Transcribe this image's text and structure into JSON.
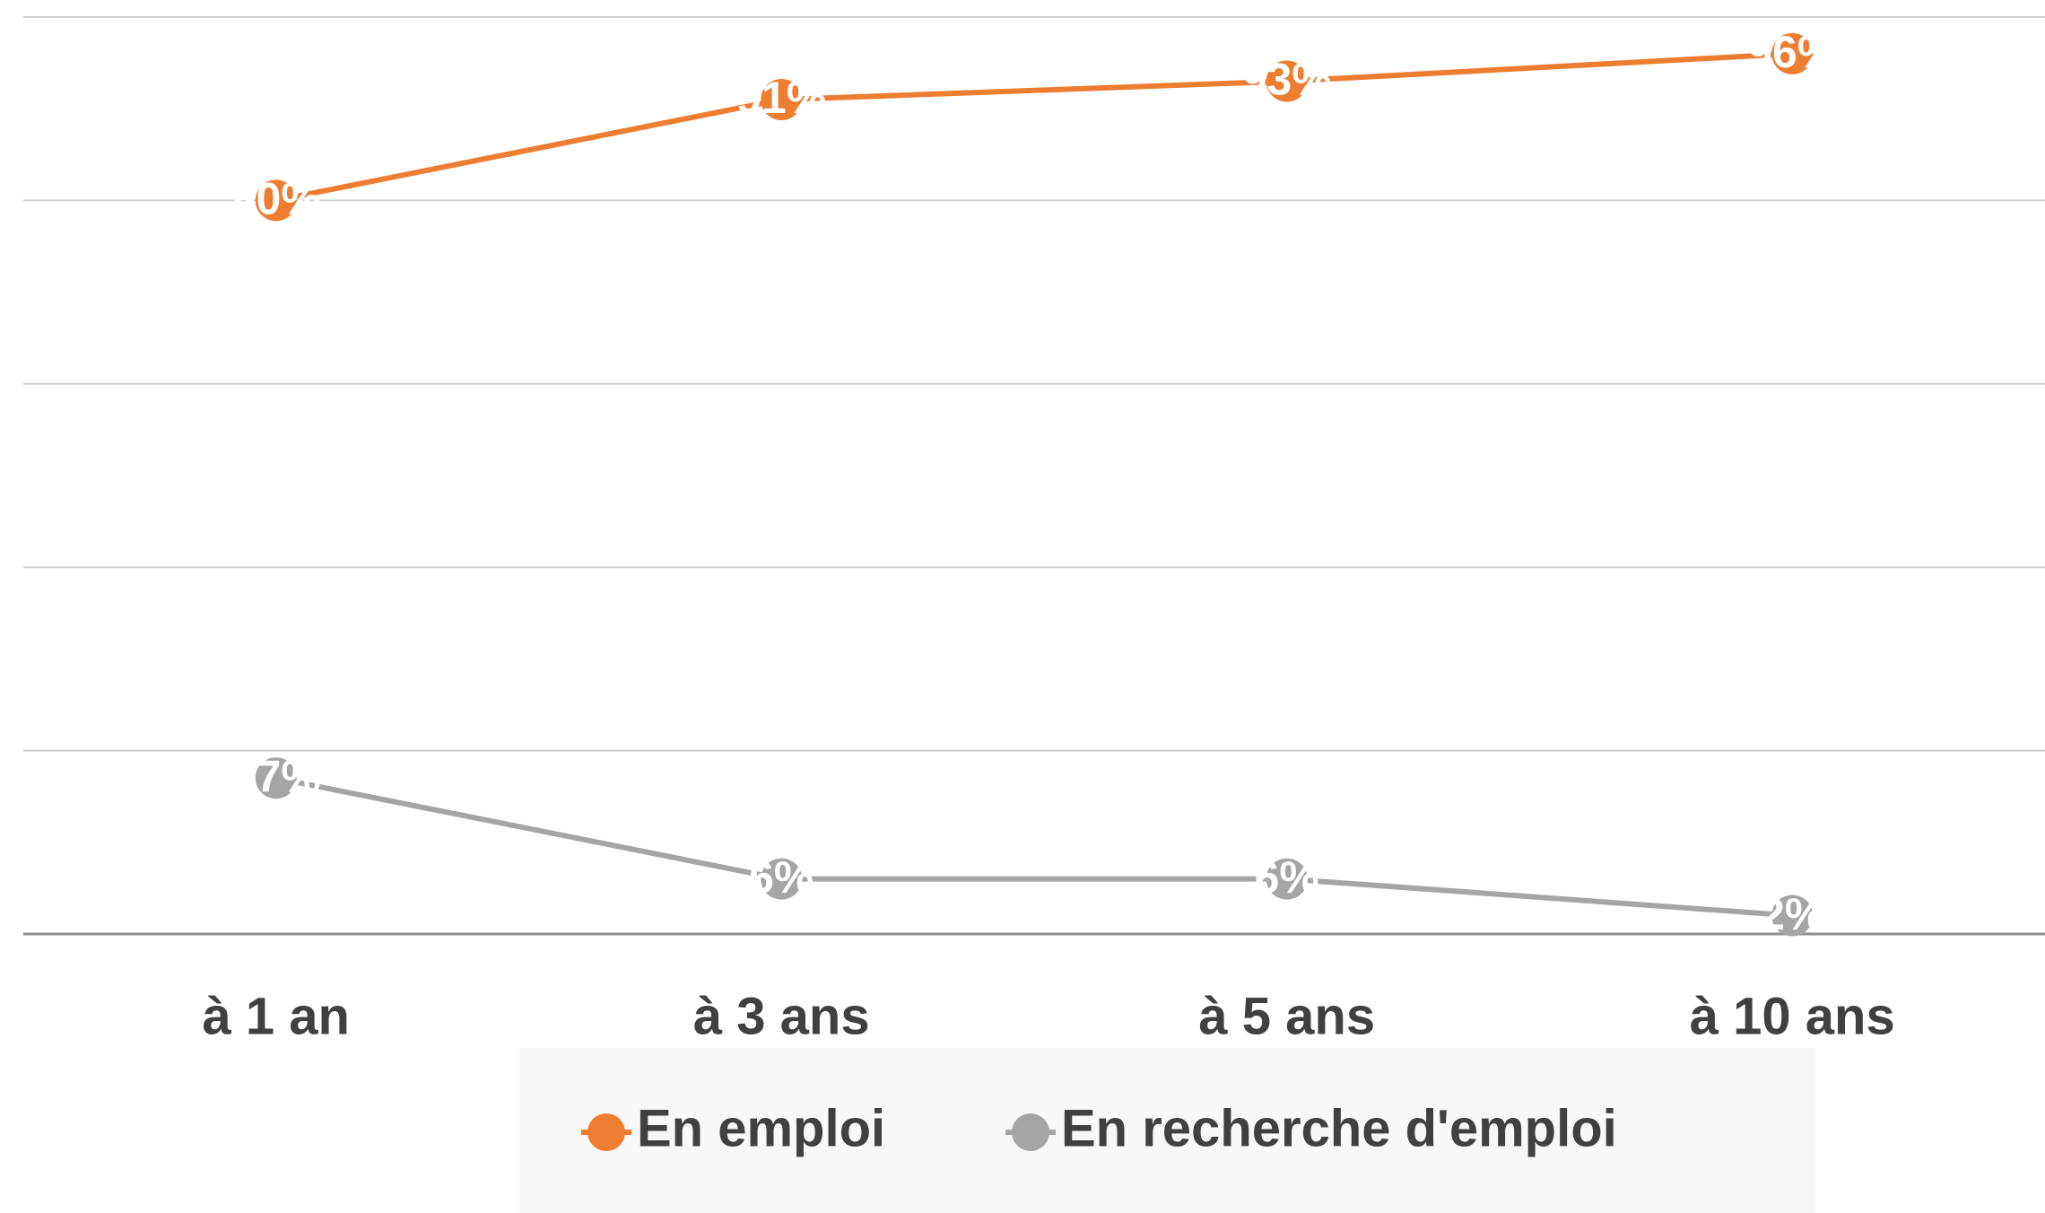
{
  "chart_data": {
    "type": "line",
    "categories": [
      "à 1 an",
      "à 3 ans",
      "à 5 ans",
      "à 10 ans"
    ],
    "series": [
      {
        "name": "En emploi",
        "color": "#ed7d31",
        "values": [
          80,
          91,
          93,
          96
        ],
        "value_labels": [
          "80%",
          "91%",
          "93%",
          "96%"
        ]
      },
      {
        "name": "En recherche d'emploi",
        "color": "#a5a5a5",
        "values": [
          17,
          6,
          6,
          2
        ],
        "value_labels": [
          "17%",
          "6%",
          "6%",
          "2%"
        ]
      }
    ],
    "ylim": [
      0,
      100
    ],
    "yticks": [
      0,
      20,
      40,
      60,
      80,
      100
    ],
    "grid": true,
    "legend": "bottom"
  }
}
